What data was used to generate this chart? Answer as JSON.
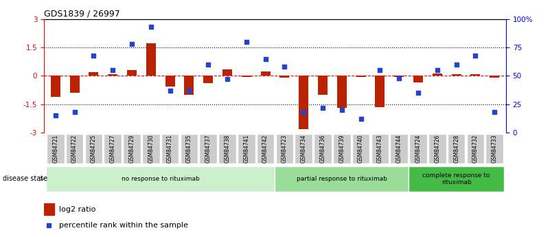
{
  "title": "GDS1839 / 26997",
  "samples": [
    "GSM84721",
    "GSM84722",
    "GSM84725",
    "GSM84727",
    "GSM84729",
    "GSM84730",
    "GSM84731",
    "GSM84735",
    "GSM84737",
    "GSM84738",
    "GSM84741",
    "GSM84742",
    "GSM84723",
    "GSM84734",
    "GSM84736",
    "GSM84739",
    "GSM84740",
    "GSM84743",
    "GSM84744",
    "GSM84724",
    "GSM84726",
    "GSM84728",
    "GSM84732",
    "GSM84733"
  ],
  "log2_ratio": [
    -1.1,
    -0.9,
    0.2,
    0.1,
    0.3,
    1.7,
    -0.55,
    -1.0,
    -0.4,
    0.35,
    -0.05,
    0.25,
    -0.08,
    -2.8,
    -1.0,
    -1.7,
    -0.05,
    -1.65,
    -0.05,
    -0.35,
    0.12,
    0.1,
    0.1,
    -0.08
  ],
  "percentile": [
    15,
    18,
    68,
    55,
    78,
    93,
    37,
    37,
    60,
    47,
    80,
    65,
    58,
    18,
    22,
    20,
    12,
    55,
    48,
    35,
    55,
    60,
    68,
    18
  ],
  "groups": [
    {
      "label": "no response to rituximab",
      "start": 0,
      "end": 12,
      "color": "#ccf0cc"
    },
    {
      "label": "partial response to rituximab",
      "start": 12,
      "end": 19,
      "color": "#99dd99"
    },
    {
      "label": "complete response to\nrituximab",
      "start": 19,
      "end": 24,
      "color": "#44bb44"
    }
  ],
  "bar_color": "#bb2200",
  "dot_color": "#2244cc",
  "ylim_left": [
    -3,
    3
  ],
  "ylim_right": [
    0,
    100
  ],
  "yticks_left": [
    -3,
    -1.5,
    0,
    1.5,
    3
  ],
  "yticks_right": [
    0,
    25,
    50,
    75,
    100
  ],
  "ytick_labels_right": [
    "0",
    "25",
    "50",
    "75",
    "100%"
  ]
}
